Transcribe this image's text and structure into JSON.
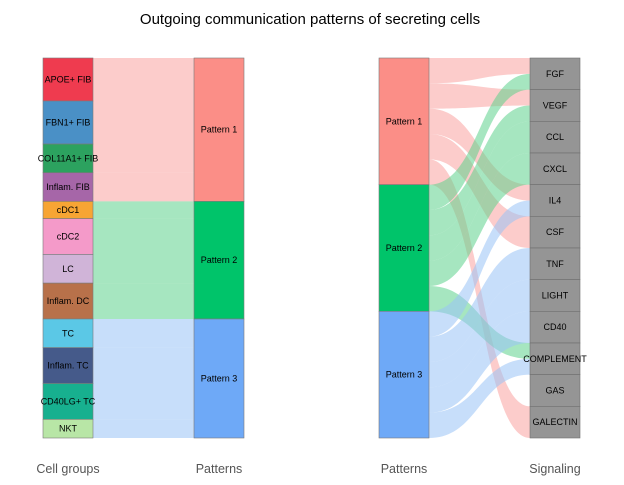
{
  "title": "Outgoing communication patterns of secreting cells",
  "left_panel": {
    "left_axis_label": "Cell groups",
    "right_axis_label": "Patterns",
    "cell_groups": [
      {
        "label": "APOE+ FIB",
        "color": "#ef3b4f",
        "pattern": 0,
        "units": 3
      },
      {
        "label": "FBN1+ FIB",
        "color": "#4a90c6",
        "pattern": 0,
        "units": 3
      },
      {
        "label": "COL11A1+ FIB",
        "color": "#2ca25f",
        "pattern": 0,
        "units": 2
      },
      {
        "label": "Inflam. FIB",
        "color": "#a666a8",
        "pattern": 0,
        "units": 2
      },
      {
        "label": "cDC1",
        "color": "#f7a534",
        "pattern": 1,
        "units": 1.2
      },
      {
        "label": "cDC2",
        "color": "#f49ac9",
        "pattern": 1,
        "units": 2.5
      },
      {
        "label": "LC",
        "color": "#d0b4d8",
        "pattern": 1,
        "units": 2
      },
      {
        "label": "Inflam. DC",
        "color": "#b8714a",
        "pattern": 1,
        "units": 2.5
      },
      {
        "label": "TC",
        "color": "#5bc8e6",
        "pattern": 2,
        "units": 2
      },
      {
        "label": "Inflam. TC",
        "color": "#455a8a",
        "pattern": 2,
        "units": 2.5
      },
      {
        "label": "CD40LG+ TC",
        "color": "#17b08f",
        "pattern": 2,
        "units": 2.5
      },
      {
        "label": "NKT",
        "color": "#b8e6a6",
        "pattern": 2,
        "units": 1.3
      }
    ],
    "patterns": [
      {
        "label": "Pattern 1",
        "color": "#fb8e87",
        "link_color": "#f9a3a0"
      },
      {
        "label": "Pattern 2",
        "color": "#00c46a",
        "link_color": "#5dd18c"
      },
      {
        "label": "Pattern 3",
        "color": "#6ea9f7",
        "link_color": "#99c2f5"
      }
    ]
  },
  "right_panel": {
    "left_axis_label": "Patterns",
    "right_axis_label": "Signaling",
    "patterns": [
      {
        "label": "Pattern 1",
        "color": "#fb8e87",
        "link_color": "#f9a3a0"
      },
      {
        "label": "Pattern 2",
        "color": "#00c46a",
        "link_color": "#5dd18c"
      },
      {
        "label": "Pattern 3",
        "color": "#6ea9f7",
        "link_color": "#99c2f5"
      }
    ],
    "signaling": [
      "FGF",
      "VEGF",
      "CCL",
      "CXCL",
      "IL4",
      "CSF",
      "TNF",
      "LIGHT",
      "CD40",
      "COMPLEMENT",
      "GAS",
      "GALECTIN"
    ],
    "signaling_color": "#959595",
    "flows": [
      {
        "pattern": 0,
        "signal": 0,
        "units": 1
      },
      {
        "pattern": 0,
        "signal": 1,
        "units": 1
      },
      {
        "pattern": 0,
        "signal": 4,
        "units": 1
      },
      {
        "pattern": 0,
        "signal": 5,
        "units": 1
      },
      {
        "pattern": 0,
        "signal": 11,
        "units": 1
      },
      {
        "pattern": 1,
        "signal": 0,
        "units": 1
      },
      {
        "pattern": 1,
        "signal": 1,
        "units": 1
      },
      {
        "pattern": 1,
        "signal": 2,
        "units": 1
      },
      {
        "pattern": 1,
        "signal": 3,
        "units": 1
      },
      {
        "pattern": 1,
        "signal": 9,
        "units": 1
      },
      {
        "pattern": 2,
        "signal": 4,
        "units": 1
      },
      {
        "pattern": 2,
        "signal": 6,
        "units": 1
      },
      {
        "pattern": 2,
        "signal": 7,
        "units": 1
      },
      {
        "pattern": 2,
        "signal": 8,
        "units": 1
      },
      {
        "pattern": 2,
        "signal": 9,
        "units": 1
      }
    ]
  }
}
